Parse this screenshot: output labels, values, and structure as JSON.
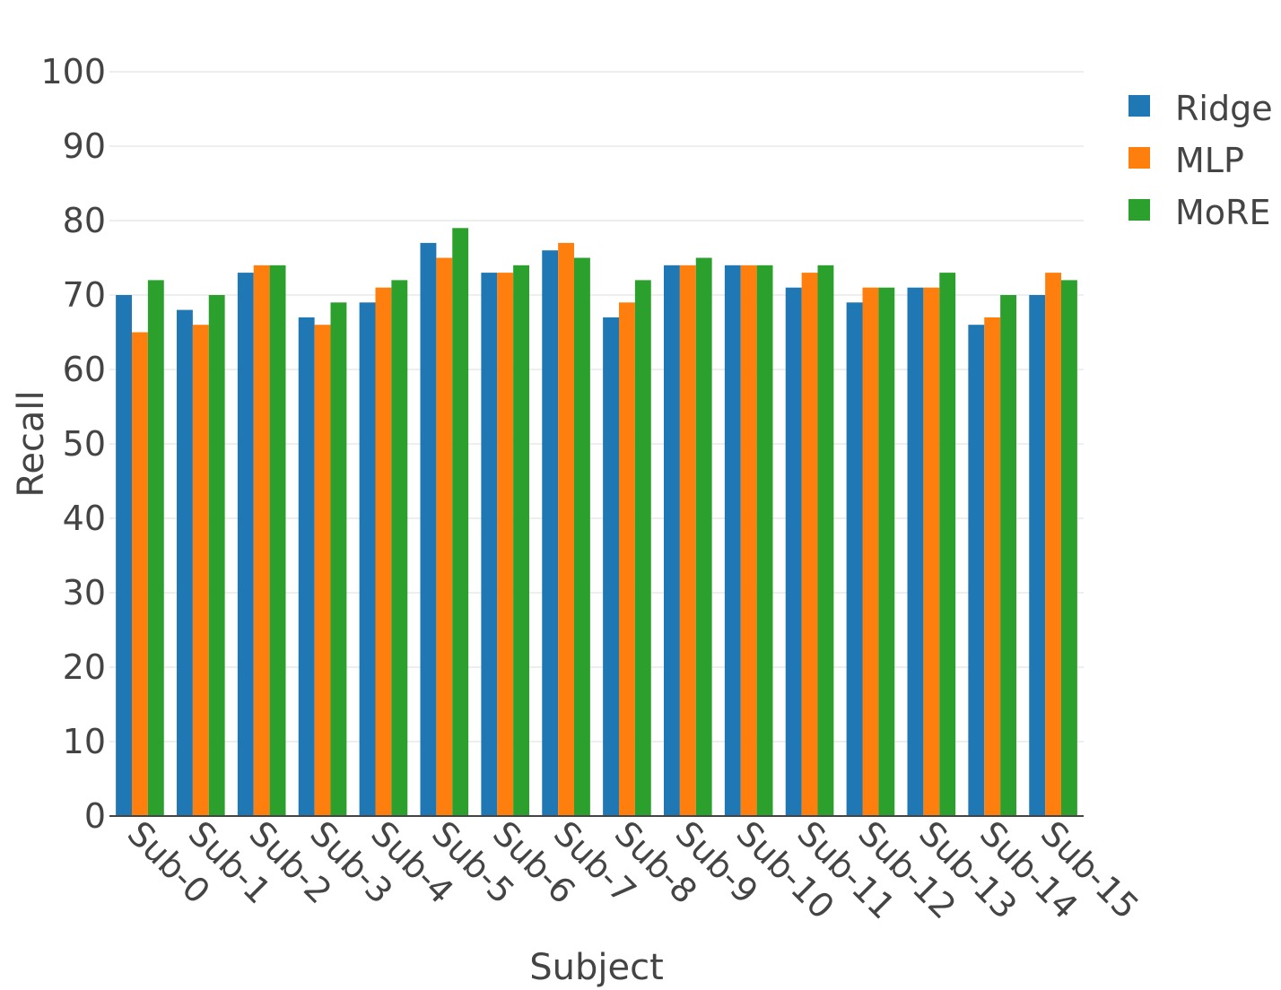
{
  "chart_data": {
    "type": "bar",
    "xlabel": "Subject",
    "ylabel": "Recall",
    "ylim": [
      0,
      100
    ],
    "yticks": [
      0,
      10,
      20,
      30,
      40,
      50,
      60,
      70,
      80,
      90,
      100
    ],
    "grid": true,
    "legend_position": "top-right",
    "categories": [
      "Sub-0",
      "Sub-1",
      "Sub-2",
      "Sub-3",
      "Sub-4",
      "Sub-5",
      "Sub-6",
      "Sub-7",
      "Sub-8",
      "Sub-9",
      "Sub-10",
      "Sub-11",
      "Sub-12",
      "Sub-13",
      "Sub-14",
      "Sub-15"
    ],
    "series": [
      {
        "name": "Ridge",
        "color": "#1f77b4",
        "values": [
          70,
          68,
          73,
          67,
          69,
          77,
          73,
          76,
          67,
          74,
          74,
          71,
          69,
          71,
          66,
          70
        ]
      },
      {
        "name": "MLP",
        "color": "#ff7f0e",
        "values": [
          65,
          66,
          74,
          66,
          71,
          75,
          73,
          77,
          69,
          74,
          74,
          73,
          71,
          71,
          67,
          73
        ]
      },
      {
        "name": "MoRE",
        "color": "#2ca02c",
        "values": [
          72,
          70,
          74,
          69,
          72,
          79,
          74,
          75,
          72,
          75,
          74,
          74,
          71,
          73,
          70,
          72
        ]
      }
    ]
  }
}
